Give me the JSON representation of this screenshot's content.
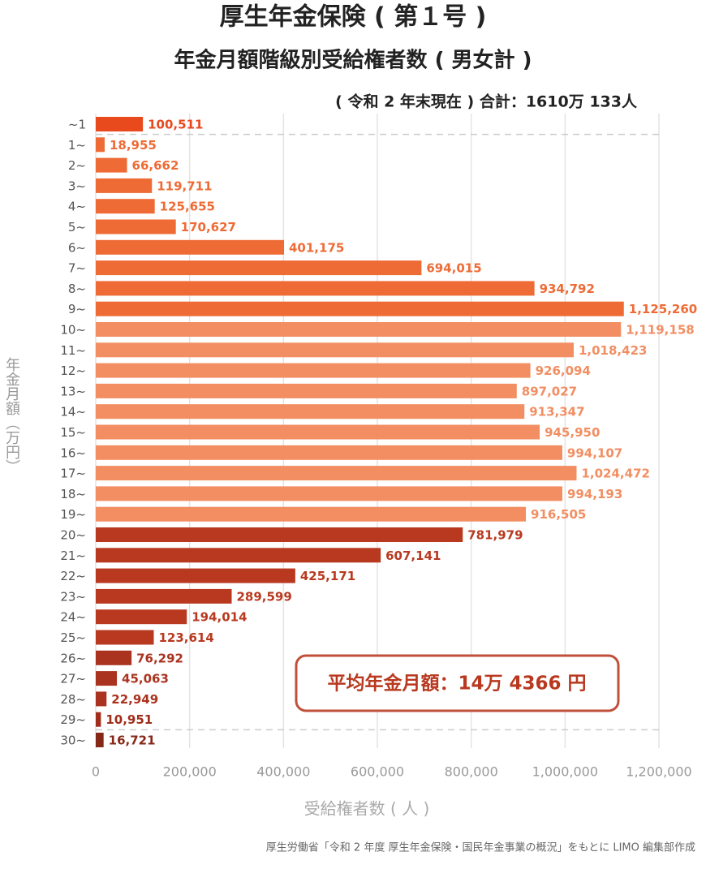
{
  "chart_data": {
    "type": "barh",
    "title": "厚生年金保険 ( 第１号 )",
    "subtitle": "年金月額階級別受給権者数 ( 男女計 )",
    "note": "( 令和 2 年末現在 ) 合計：1610万 133人",
    "annotation": "平均年金月額：14万 4366 円",
    "y_label": "年金月額（万円）",
    "x_label": "受給権者数 ( 人 )",
    "source": "厚生労働省「令和 2 年度 厚生年金保険・国民年金事業の概況」をもとに LIMO 編集部作成",
    "categories": [
      "~1",
      "1~",
      "2~",
      "3~",
      "4~",
      "5~",
      "6~",
      "7~",
      "8~",
      "9~",
      "10~",
      "11~",
      "12~",
      "13~",
      "14~",
      "15~",
      "16~",
      "17~",
      "18~",
      "19~",
      "20~",
      "21~",
      "22~",
      "23~",
      "24~",
      "25~",
      "26~",
      "27~",
      "28~",
      "29~",
      "30~"
    ],
    "values": [
      100511,
      18955,
      66662,
      119711,
      125655,
      170627,
      401175,
      694015,
      934792,
      1125260,
      1119158,
      1018423,
      926094,
      897027,
      913347,
      945950,
      994107,
      1024472,
      994193,
      916505,
      781979,
      607141,
      425171,
      289599,
      194014,
      123614,
      76292,
      45063,
      22949,
      10951,
      16721
    ],
    "value_labels": [
      "100,511",
      "18,955",
      "66,662",
      "119,711",
      "125,655",
      "170,627",
      "401,175",
      "694,015",
      "934,792",
      "1,125,260",
      "1,119,158",
      "1,018,423",
      "926,094",
      "897,027",
      "913,347",
      "945,950",
      "994,107",
      "1,024,472",
      "994,193",
      "916,505",
      "781,979",
      "607,141",
      "425,171",
      "289,599",
      "194,014",
      "123,614",
      "76,292",
      "45,063",
      "22,949",
      "10,951",
      "16,721"
    ],
    "colors": [
      "#e8491d",
      "#ee6b36",
      "#ee6b36",
      "#ee6b36",
      "#ee6b36",
      "#ee6b36",
      "#ee6b36",
      "#ee6b36",
      "#ee6b36",
      "#ee6b36",
      "#f28e62",
      "#f28e62",
      "#f28e62",
      "#f28e62",
      "#f28e62",
      "#f28e62",
      "#f28e62",
      "#f28e62",
      "#f28e62",
      "#f28e62",
      "#b8391f",
      "#b8391f",
      "#b8391f",
      "#b8391f",
      "#b8391f",
      "#b8391f",
      "#aa3320",
      "#aa3320",
      "#aa3320",
      "#a02e1c",
      "#862818"
    ],
    "xlim": [
      0,
      1200000
    ],
    "xticks": [
      0,
      {
        "value": 200000,
        "label": "200,000"
      },
      {
        "value": 400000,
        "label": "400,000"
      },
      {
        "value": 600000,
        "label": "600,000"
      },
      {
        "value": 800000,
        "label": "800,000"
      },
      {
        "value": 1000000,
        "label": "1,000,000"
      },
      {
        "value": 1200000,
        "label": "1,200,000"
      }
    ],
    "grid": true
  }
}
